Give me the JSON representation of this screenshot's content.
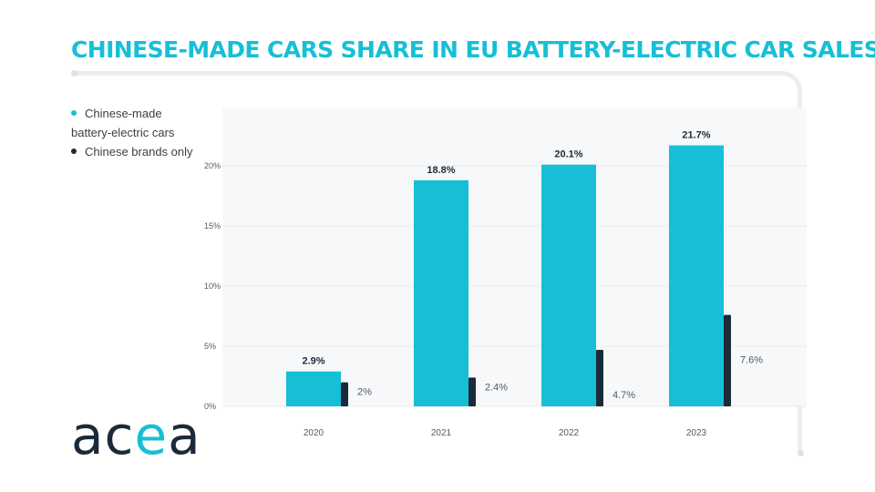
{
  "header": {
    "title": "CHINESE-MADE CARS SHARE IN EU BATTERY-ELECTRIC CAR SALES"
  },
  "legend": {
    "items": [
      {
        "label_line1": "Chinese-made",
        "label_line2": "battery-electric cars",
        "color": "#16bfd6"
      },
      {
        "label_line1": "Chinese brands only",
        "label_line2": "",
        "color": "#1b2a3a"
      }
    ]
  },
  "logo": {
    "part1": "ac",
    "part2": "e",
    "part3": "a"
  },
  "colors": {
    "primary": "#16bfd6",
    "secondary": "#1b2a3a",
    "plot_bg": "#f7f8f9",
    "grid": "#e9ebee"
  },
  "chart_data": {
    "type": "bar",
    "title": "CHINESE-MADE CARS SHARE IN EU BATTERY-ELECTRIC CAR SALES",
    "categories": [
      "2020",
      "2021",
      "2022",
      "2023"
    ],
    "series": [
      {
        "name": "Chinese-made battery-electric cars",
        "values": [
          2.9,
          18.8,
          20.1,
          21.7
        ],
        "labels": [
          "2.9%",
          "18.8%",
          "20.1%",
          "21.7%"
        ]
      },
      {
        "name": "Chinese brands only",
        "values": [
          2.0,
          2.4,
          4.7,
          7.6
        ],
        "labels": [
          "2%",
          "2.4%",
          "4.7%",
          "7.6%"
        ]
      }
    ],
    "yticks": [
      0,
      5,
      10,
      15,
      20
    ],
    "ytick_labels": [
      "0%",
      "5%",
      "10%",
      "15%",
      "20%"
    ],
    "ylim": [
      0,
      25
    ],
    "xlabel": "",
    "ylabel": "",
    "grid": true,
    "legend_position": "top-left"
  }
}
